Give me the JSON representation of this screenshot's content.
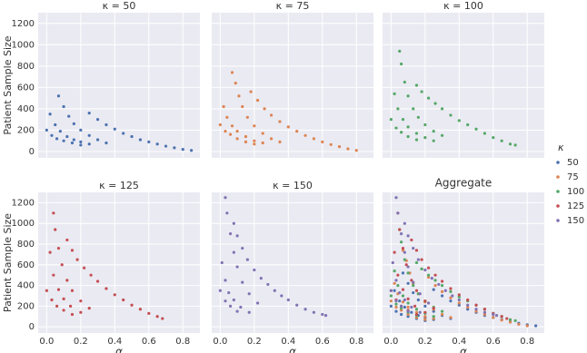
{
  "chart_data": {
    "type": "scatter",
    "ylabel": "Patient Sample Size",
    "xlabel": "α",
    "aggregate_title": "Aggregate",
    "legend_title": "κ",
    "xlim": [
      -0.05,
      0.9
    ],
    "ylim": [
      -60,
      1300
    ],
    "xticks": [
      {
        "value": 0,
        "label": "0.0"
      },
      {
        "value": 0.2,
        "label": "0.2"
      },
      {
        "value": 0.4,
        "label": "0.4"
      },
      {
        "value": 0.6,
        "label": "0.6"
      },
      {
        "value": 0.8,
        "label": "0.8"
      }
    ],
    "yticks": [
      0,
      200,
      400,
      600,
      800,
      1000,
      1200
    ],
    "grid": true,
    "series": [
      {
        "name": "50",
        "title": "κ = 50",
        "color": "#4c72b0",
        "x": [
          0.25,
          0.3,
          0.35,
          0.4,
          0.45,
          0.5,
          0.55,
          0.6,
          0.65,
          0.7,
          0.75,
          0.8,
          0.85,
          0.07,
          0.1,
          0.13,
          0.16,
          0.2,
          0.25,
          0.3,
          0.35,
          0.02,
          0.05,
          0.08,
          0.12,
          0.16,
          0.2,
          0.25,
          0.0,
          0.03,
          0.06,
          0.1,
          0.15,
          0.2
        ],
        "values": [
          360,
          300,
          250,
          210,
          170,
          140,
          110,
          90,
          70,
          50,
          35,
          20,
          10,
          520,
          420,
          330,
          260,
          200,
          150,
          110,
          80,
          350,
          250,
          190,
          140,
          110,
          90,
          70,
          200,
          150,
          120,
          100,
          80,
          60
        ]
      },
      {
        "name": "75",
        "title": "κ = 75",
        "color": "#dd8452",
        "x": [
          0.18,
          0.22,
          0.26,
          0.3,
          0.35,
          0.4,
          0.45,
          0.5,
          0.55,
          0.6,
          0.65,
          0.7,
          0.75,
          0.8,
          0.07,
          0.09,
          0.11,
          0.13,
          0.16,
          0.2,
          0.25,
          0.3,
          0.35,
          0.02,
          0.04,
          0.07,
          0.1,
          0.15,
          0.2,
          0.25,
          0.0,
          0.03,
          0.06,
          0.1,
          0.15,
          0.2
        ],
        "values": [
          560,
          480,
          400,
          340,
          280,
          230,
          190,
          150,
          120,
          90,
          65,
          45,
          25,
          10,
          740,
          640,
          520,
          420,
          320,
          240,
          170,
          120,
          90,
          420,
          320,
          240,
          190,
          140,
          100,
          80,
          250,
          190,
          160,
          120,
          90,
          70
        ]
      },
      {
        "name": "100",
        "title": "κ = 100",
        "color": "#55a868",
        "x": [
          0.15,
          0.18,
          0.22,
          0.26,
          0.3,
          0.35,
          0.4,
          0.45,
          0.5,
          0.55,
          0.6,
          0.65,
          0.7,
          0.73,
          0.05,
          0.06,
          0.08,
          0.1,
          0.13,
          0.16,
          0.2,
          0.25,
          0.3,
          0.02,
          0.04,
          0.07,
          0.1,
          0.15,
          0.2,
          0.25,
          0.0,
          0.03,
          0.06,
          0.1,
          0.15
        ],
        "values": [
          620,
          560,
          500,
          450,
          400,
          340,
          290,
          250,
          210,
          170,
          130,
          100,
          70,
          60,
          940,
          820,
          650,
          520,
          400,
          320,
          250,
          190,
          150,
          540,
          400,
          300,
          230,
          170,
          130,
          100,
          300,
          220,
          180,
          140,
          110
        ]
      },
      {
        "name": "125",
        "title": "κ = 125",
        "color": "#c44e52",
        "x": [
          0.12,
          0.15,
          0.18,
          0.22,
          0.26,
          0.3,
          0.35,
          0.4,
          0.45,
          0.5,
          0.55,
          0.6,
          0.65,
          0.68,
          0.04,
          0.05,
          0.07,
          0.09,
          0.12,
          0.15,
          0.2,
          0.25,
          0.02,
          0.04,
          0.07,
          0.1,
          0.14,
          0.2,
          0.0,
          0.03,
          0.06,
          0.1,
          0.15
        ],
        "values": [
          840,
          740,
          650,
          570,
          500,
          440,
          370,
          310,
          260,
          210,
          170,
          130,
          100,
          80,
          1100,
          940,
          760,
          600,
          450,
          350,
          250,
          180,
          720,
          500,
          360,
          270,
          200,
          140,
          350,
          260,
          200,
          160,
          120
        ]
      },
      {
        "name": "150",
        "title": "κ = 150",
        "color": "#8172b3",
        "x": [
          0.08,
          0.1,
          0.13,
          0.16,
          0.2,
          0.24,
          0.28,
          0.32,
          0.36,
          0.4,
          0.45,
          0.5,
          0.55,
          0.6,
          0.62,
          0.03,
          0.04,
          0.06,
          0.08,
          0.1,
          0.13,
          0.17,
          0.22,
          0.01,
          0.03,
          0.05,
          0.08,
          0.12,
          0.17,
          0.0,
          0.03,
          0.06,
          0.1
        ],
        "values": [
          1000,
          880,
          760,
          650,
          550,
          470,
          410,
          350,
          300,
          260,
          210,
          170,
          140,
          120,
          110,
          1250,
          1100,
          900,
          720,
          580,
          430,
          320,
          230,
          620,
          450,
          330,
          260,
          190,
          140,
          350,
          250,
          200,
          150
        ]
      }
    ]
  }
}
